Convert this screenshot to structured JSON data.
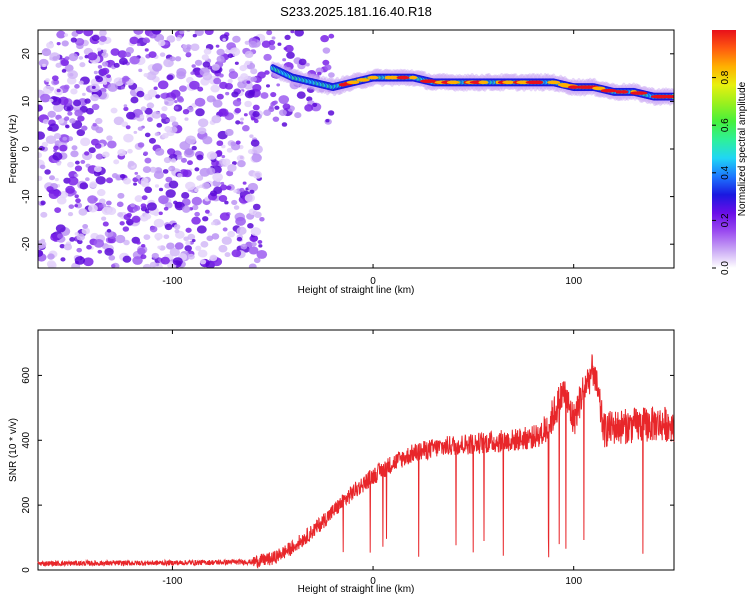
{
  "title": "S233.2025.181.16.40.R18",
  "chart_data": [
    {
      "type": "heatmap",
      "xlabel": "Height of straight line (km)",
      "ylabel": "Frequency (Hz)",
      "xlim": [
        -167,
        150
      ],
      "ylim": [
        -25,
        25
      ],
      "xticks": [
        -100,
        0,
        100
      ],
      "yticks": [
        -20,
        -10,
        0,
        10,
        20
      ],
      "colorbar": {
        "label": "Normalized spectral amplitude",
        "range": [
          0,
          1
        ],
        "ticks": [
          "0.0",
          "0.2",
          "0.4",
          "0.6",
          "0.8"
        ],
        "colors": [
          "#ffffff",
          "#c9a6f5",
          "#9b4bf0",
          "#6a0ee8",
          "#1a18e0",
          "#1d77ff",
          "#20d6f5",
          "#2ef09a",
          "#46f03c",
          "#9af01e",
          "#e8f00f",
          "#ffb000",
          "#ff5a10",
          "#e8101a"
        ]
      },
      "ridge": {
        "x": [
          -50,
          -40,
          -30,
          -20,
          -10,
          0,
          10,
          20,
          30,
          40,
          50,
          60,
          70,
          80,
          90,
          100,
          110,
          120,
          130,
          140,
          150
        ],
        "y": [
          17,
          15,
          14,
          13,
          14,
          15,
          15,
          15,
          14,
          14,
          14,
          14,
          14,
          14,
          14,
          13,
          13,
          12,
          12,
          11,
          11
        ]
      },
      "grid": false
    },
    {
      "type": "line",
      "xlabel": "Height of straight line (km)",
      "ylabel": "SNR (10 * v/v)",
      "xlim": [
        -167,
        150
      ],
      "ylim": [
        0,
        740
      ],
      "xticks": [
        -100,
        0,
        100
      ],
      "yticks": [
        0,
        200,
        400,
        600
      ],
      "color": "#e8262a",
      "trend": {
        "x": [
          -167,
          -100,
          -60,
          -50,
          -40,
          -30,
          -20,
          -10,
          0,
          10,
          20,
          30,
          40,
          50,
          60,
          70,
          80,
          85,
          90,
          95,
          100,
          105,
          110,
          115,
          120,
          130,
          140,
          150
        ],
        "y": [
          20,
          22,
          25,
          35,
          70,
          120,
          180,
          240,
          290,
          330,
          360,
          375,
          385,
          390,
          395,
          400,
          410,
          420,
          480,
          550,
          460,
          560,
          620,
          430,
          440,
          445,
          450,
          450
        ]
      },
      "grid": false
    }
  ]
}
